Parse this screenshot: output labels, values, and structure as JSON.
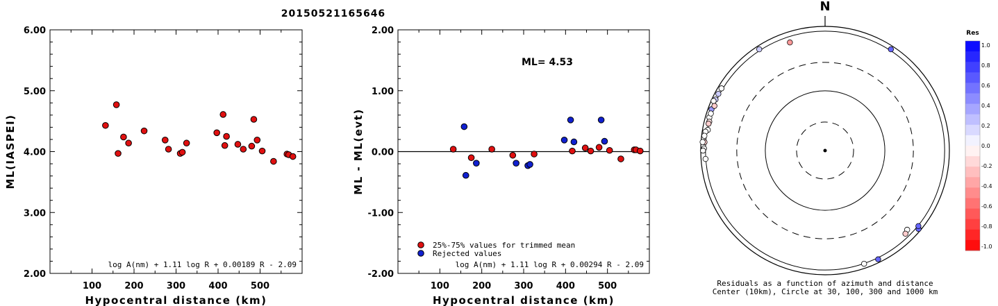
{
  "page_title": "20150521165646",
  "chart_data": [
    {
      "type": "scatter",
      "panel": "ML vs hypocentral distance",
      "ylabel": "ML(IASPEI)",
      "xlabel": "Hypocentral distance (km)",
      "xlim": [
        0,
        600
      ],
      "ylim": [
        2.0,
        6.0
      ],
      "xticks": [
        "100",
        "200",
        "300",
        "400",
        "500"
      ],
      "yticks": [
        "2.00",
        "3.00",
        "4.00",
        "5.00",
        "6.00"
      ],
      "formula": "log A(nm) + 1.11 log R + 0.00189 R - 2.09",
      "marker_color": "#e01010",
      "points": [
        {
          "x": 132,
          "y": 4.43
        },
        {
          "x": 158,
          "y": 4.77
        },
        {
          "x": 162,
          "y": 3.97
        },
        {
          "x": 175,
          "y": 4.24
        },
        {
          "x": 187,
          "y": 4.14
        },
        {
          "x": 224,
          "y": 4.34
        },
        {
          "x": 274,
          "y": 4.19
        },
        {
          "x": 282,
          "y": 4.04
        },
        {
          "x": 310,
          "y": 3.97
        },
        {
          "x": 315,
          "y": 3.99
        },
        {
          "x": 325,
          "y": 4.14
        },
        {
          "x": 397,
          "y": 4.31
        },
        {
          "x": 412,
          "y": 4.61
        },
        {
          "x": 416,
          "y": 4.1
        },
        {
          "x": 420,
          "y": 4.25
        },
        {
          "x": 447,
          "y": 4.12
        },
        {
          "x": 460,
          "y": 4.04
        },
        {
          "x": 480,
          "y": 4.09
        },
        {
          "x": 485,
          "y": 4.53
        },
        {
          "x": 493,
          "y": 4.19
        },
        {
          "x": 505,
          "y": 4.01
        },
        {
          "x": 532,
          "y": 3.84
        },
        {
          "x": 564,
          "y": 3.96
        },
        {
          "x": 568,
          "y": 3.95
        },
        {
          "x": 578,
          "y": 3.92
        }
      ]
    },
    {
      "type": "scatter",
      "panel": "Residuals vs hypocentral distance",
      "ylabel": "ML - ML(evt)",
      "xlabel": "Hypocentral distance (km)",
      "xlim": [
        0,
        600
      ],
      "ylim": [
        -2.0,
        2.0
      ],
      "xticks": [
        "100",
        "200",
        "300",
        "400",
        "500"
      ],
      "yticks": [
        "-2.00",
        "-1.00",
        "0.00",
        "1.00",
        "2.00"
      ],
      "annotation": "ML= 4.53",
      "formula": "log A(nm) + 1.11 log R + 0.00294 R - 2.09",
      "reference_line_y": 0,
      "legend": [
        {
          "label": "25%-75% values for trimmed mean",
          "color": "#e01010"
        },
        {
          "label": "Rejected values",
          "color": "#1020d0"
        }
      ],
      "series": [
        {
          "name": "25%-75% values for trimmed mean",
          "color": "#e01010",
          "points": [
            {
              "x": 132,
              "y": 0.04
            },
            {
              "x": 175,
              "y": -0.1
            },
            {
              "x": 224,
              "y": 0.04
            },
            {
              "x": 274,
              "y": -0.06
            },
            {
              "x": 325,
              "y": -0.04
            },
            {
              "x": 416,
              "y": 0.01
            },
            {
              "x": 447,
              "y": 0.06
            },
            {
              "x": 460,
              "y": 0.01
            },
            {
              "x": 480,
              "y": 0.07
            },
            {
              "x": 505,
              "y": 0.02
            },
            {
              "x": 532,
              "y": -0.12
            },
            {
              "x": 564,
              "y": 0.03
            },
            {
              "x": 568,
              "y": 0.03
            },
            {
              "x": 578,
              "y": 0.01
            }
          ]
        },
        {
          "name": "Rejected values",
          "color": "#1020d0",
          "points": [
            {
              "x": 158,
              "y": 0.41
            },
            {
              "x": 162,
              "y": -0.39
            },
            {
              "x": 187,
              "y": -0.19
            },
            {
              "x": 282,
              "y": -0.19
            },
            {
              "x": 310,
              "y": -0.23
            },
            {
              "x": 315,
              "y": -0.21
            },
            {
              "x": 397,
              "y": 0.19
            },
            {
              "x": 412,
              "y": 0.52
            },
            {
              "x": 420,
              "y": 0.16
            },
            {
              "x": 485,
              "y": 0.52
            },
            {
              "x": 493,
              "y": 0.17
            }
          ]
        }
      ]
    },
    {
      "type": "scatter",
      "panel": "Residual polar map",
      "north_label": "N",
      "caption_line1": "Residuals as a function of azimuth and distance",
      "caption_line2": "Center (10km), Circle at 30, 100, 300 and 1000 km",
      "rings_km": [
        30,
        100,
        300,
        1000
      ],
      "colorbar": {
        "title": "Res",
        "ticks": [
          "1.0",
          "0.8",
          "0.6",
          "0.4",
          "0.2",
          "0.0",
          "-0.2",
          "-0.4",
          "-0.6",
          "-0.8",
          "-1.0"
        ],
        "max_color": "#0000ff",
        "zero_color": "#ffffff",
        "min_color": "#ff0000"
      },
      "stations": [
        {
          "azimuth_deg": 327,
          "distance_km": 1050,
          "res": 0.2
        },
        {
          "azimuth_deg": 342,
          "distance_km": 800,
          "res": -0.4
        },
        {
          "azimuth_deg": 33,
          "distance_km": 1050,
          "res": 0.6
        },
        {
          "azimuth_deg": 301,
          "distance_km": 1050,
          "res": 0.0
        },
        {
          "azimuth_deg": 298,
          "distance_km": 1050,
          "res": 0.2
        },
        {
          "azimuth_deg": 295,
          "distance_km": 1050,
          "res": 0.2
        },
        {
          "azimuth_deg": 294,
          "distance_km": 1100,
          "res": 0.0
        },
        {
          "azimuth_deg": 290,
          "distance_km": 1050,
          "res": 0.4
        },
        {
          "azimuth_deg": 286,
          "distance_km": 1030,
          "res": 0.0
        },
        {
          "azimuth_deg": 292,
          "distance_km": 990,
          "res": -0.2
        },
        {
          "azimuth_deg": 288,
          "distance_km": 1020,
          "res": 0.0
        },
        {
          "azimuth_deg": 284,
          "distance_km": 990,
          "res": -0.1
        },
        {
          "azimuth_deg": 283,
          "distance_km": 1000,
          "res": -0.2
        },
        {
          "azimuth_deg": 280,
          "distance_km": 980,
          "res": 0.0
        },
        {
          "azimuth_deg": 279,
          "distance_km": 1060,
          "res": 0.0
        },
        {
          "azimuth_deg": 277,
          "distance_km": 1080,
          "res": 0.0
        },
        {
          "azimuth_deg": 274,
          "distance_km": 1050,
          "res": -0.2
        },
        {
          "azimuth_deg": 274,
          "distance_km": 1130,
          "res": 0.0
        },
        {
          "azimuth_deg": 271,
          "distance_km": 1060,
          "res": 0.0
        },
        {
          "azimuth_deg": 270,
          "distance_km": 1100,
          "res": 0.0
        },
        {
          "azimuth_deg": 266,
          "distance_km": 1010,
          "res": 0.0
        },
        {
          "azimuth_deg": 134,
          "distance_km": 810,
          "res": 0.0
        },
        {
          "azimuth_deg": 136,
          "distance_km": 860,
          "res": -0.2
        },
        {
          "azimuth_deg": 130,
          "distance_km": 1100,
          "res": 0.6
        },
        {
          "azimuth_deg": 129,
          "distance_km": 1020,
          "res": 0.6
        },
        {
          "azimuth_deg": 161,
          "distance_km": 1010,
          "res": 0.0
        },
        {
          "azimuth_deg": 154,
          "distance_km": 1060,
          "res": 0.6
        }
      ]
    }
  ]
}
